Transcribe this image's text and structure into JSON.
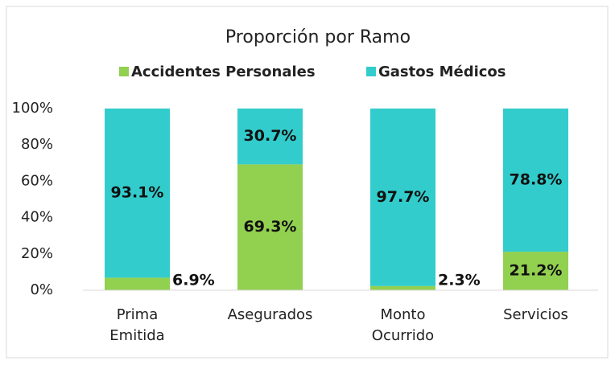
{
  "chart_data": {
    "type": "bar",
    "stacked": true,
    "title": "Proporción por Ramo",
    "categories": [
      "Prima Emitida",
      "Asegurados",
      "Monto Ocurrido",
      "Servicios"
    ],
    "series": [
      {
        "name": "Accidentes Personales",
        "color": "#92d050",
        "values": [
          6.9,
          69.3,
          2.3,
          21.2
        ],
        "value_labels": [
          "6.9%",
          "69.3%",
          "2.3%",
          "21.2%"
        ]
      },
      {
        "name": "Gastos Médicos",
        "color": "#33cccc",
        "values": [
          93.1,
          30.7,
          97.7,
          78.8
        ],
        "value_labels": [
          "93.1%",
          "30.7%",
          "97.7%",
          "78.8%"
        ]
      }
    ],
    "ylim": [
      0,
      100
    ],
    "yticks": [
      {
        "value": 0,
        "label": "0%"
      },
      {
        "value": 20,
        "label": "20%"
      },
      {
        "value": 40,
        "label": "40%"
      },
      {
        "value": 60,
        "label": "60%"
      },
      {
        "value": 80,
        "label": "80%"
      },
      {
        "value": 100,
        "label": "100%"
      }
    ],
    "legend": "top"
  }
}
